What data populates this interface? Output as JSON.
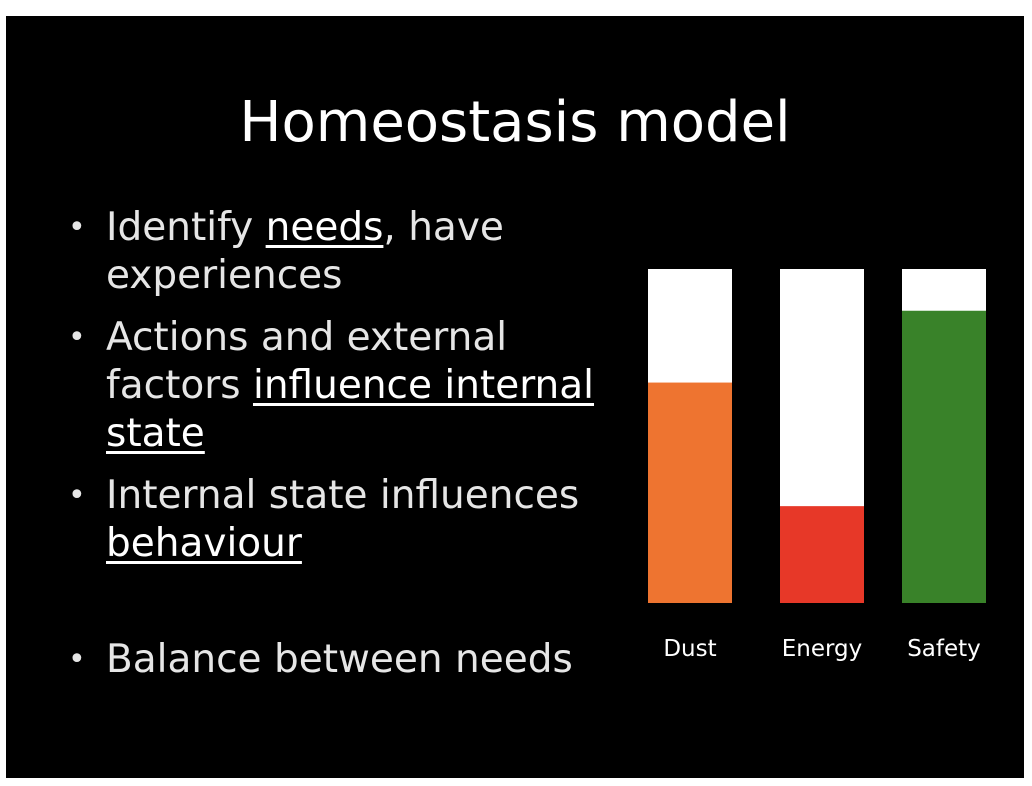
{
  "slide": {
    "title": "Homeostasis model",
    "bullets": [
      {
        "parts": [
          {
            "text": "Identify ",
            "underline": false
          },
          {
            "text": "needs",
            "underline": true
          },
          {
            "text": ", have experiences",
            "underline": false
          }
        ]
      },
      {
        "parts": [
          {
            "text": "Actions and external factors ",
            "underline": false
          },
          {
            "text": "influence internal state",
            "underline": true
          }
        ]
      },
      {
        "parts": [
          {
            "text": "Internal state influences ",
            "underline": false
          },
          {
            "text": "behaviour",
            "underline": true
          }
        ]
      },
      {
        "parts": [
          {
            "text": "Balance between needs",
            "underline": false
          }
        ]
      }
    ]
  },
  "chart_data": {
    "type": "bar",
    "categories": [
      "Dust",
      "Energy",
      "Safety"
    ],
    "values": [
      0.66,
      0.29,
      0.875
    ],
    "ylim": [
      0,
      1
    ],
    "colors": [
      "#ee7430",
      "#e73828",
      "#398229"
    ],
    "track_color": "#ffffff",
    "title": "",
    "xlabel": "",
    "ylabel": "",
    "grid": false
  }
}
